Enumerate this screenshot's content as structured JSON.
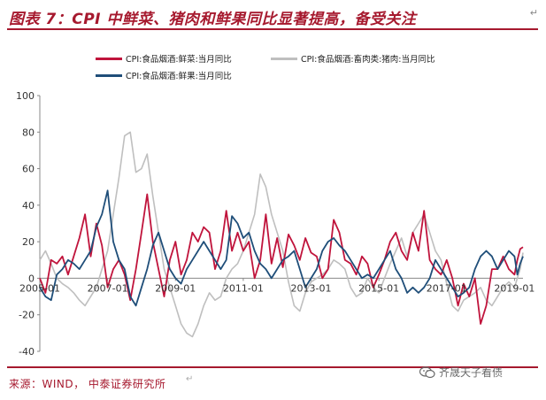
{
  "header": {
    "title": "图表 7：CPI 中鲜菜、猪肉和鲜果同比显著提高，备受关注",
    "return_mark": "↵"
  },
  "footer": {
    "source": "来源：WIND，  中泰证券研究所",
    "watermark": "齐晟天子看债",
    "return_mark": "↵"
  },
  "colors": {
    "accent": "#a6192e",
    "vegetables": "#c0143c",
    "pork": "#bfbfbf",
    "fruit": "#1f4e79"
  },
  "chart_data": {
    "type": "line",
    "title": "",
    "xlabel": "",
    "ylabel": "",
    "ylim": [
      -40,
      100
    ],
    "yticks": [
      -40,
      -20,
      0,
      20,
      40,
      60,
      80,
      100
    ],
    "x_start": "2005-01",
    "x_end": "2019-04",
    "x_tick_labels": [
      "2005-01",
      "2007-01",
      "2009-01",
      "2011-01",
      "2013-01",
      "2015-01",
      "2017-01",
      "2019-01"
    ],
    "grid": false,
    "legend_position": "top",
    "series": [
      {
        "name": "CPI:食品烟酒:鲜菜:当月同比",
        "color": "#c0143c",
        "points": [
          [
            "2005-01",
            0
          ],
          [
            "2005-03",
            -8
          ],
          [
            "2005-05",
            10
          ],
          [
            "2005-07",
            8
          ],
          [
            "2005-09",
            12
          ],
          [
            "2005-11",
            2
          ],
          [
            "2006-01",
            12
          ],
          [
            "2006-03",
            22
          ],
          [
            "2006-05",
            35
          ],
          [
            "2006-07",
            12
          ],
          [
            "2006-09",
            30
          ],
          [
            "2006-11",
            18
          ],
          [
            "2007-01",
            -5
          ],
          [
            "2007-03",
            5
          ],
          [
            "2007-05",
            10
          ],
          [
            "2007-07",
            2
          ],
          [
            "2007-09",
            -12
          ],
          [
            "2007-11",
            5
          ],
          [
            "2008-01",
            25
          ],
          [
            "2008-03",
            46
          ],
          [
            "2008-05",
            20
          ],
          [
            "2008-07",
            5
          ],
          [
            "2008-09",
            -10
          ],
          [
            "2008-11",
            10
          ],
          [
            "2009-01",
            20
          ],
          [
            "2009-03",
            2
          ],
          [
            "2009-05",
            10
          ],
          [
            "2009-07",
            25
          ],
          [
            "2009-09",
            20
          ],
          [
            "2009-11",
            28
          ],
          [
            "2010-01",
            25
          ],
          [
            "2010-03",
            5
          ],
          [
            "2010-05",
            15
          ],
          [
            "2010-07",
            37
          ],
          [
            "2010-09",
            15
          ],
          [
            "2010-11",
            25
          ],
          [
            "2011-01",
            15
          ],
          [
            "2011-03",
            20
          ],
          [
            "2011-05",
            0
          ],
          [
            "2011-07",
            10
          ],
          [
            "2011-09",
            35
          ],
          [
            "2011-11",
            8
          ],
          [
            "2012-01",
            22
          ],
          [
            "2012-03",
            6
          ],
          [
            "2012-05",
            24
          ],
          [
            "2012-07",
            18
          ],
          [
            "2012-09",
            10
          ],
          [
            "2012-11",
            22
          ],
          [
            "2013-01",
            14
          ],
          [
            "2013-03",
            12
          ],
          [
            "2013-05",
            0
          ],
          [
            "2013-07",
            5
          ],
          [
            "2013-09",
            32
          ],
          [
            "2013-11",
            25
          ],
          [
            "2014-01",
            10
          ],
          [
            "2014-03",
            8
          ],
          [
            "2014-05",
            2
          ],
          [
            "2014-07",
            12
          ],
          [
            "2014-09",
            8
          ],
          [
            "2014-11",
            -5
          ],
          [
            "2015-01",
            2
          ],
          [
            "2015-03",
            10
          ],
          [
            "2015-05",
            20
          ],
          [
            "2015-07",
            25
          ],
          [
            "2015-09",
            15
          ],
          [
            "2015-11",
            10
          ],
          [
            "2016-01",
            25
          ],
          [
            "2016-03",
            15
          ],
          [
            "2016-05",
            37
          ],
          [
            "2016-07",
            10
          ],
          [
            "2016-09",
            5
          ],
          [
            "2016-11",
            2
          ],
          [
            "2017-01",
            10
          ],
          [
            "2017-03",
            0
          ],
          [
            "2017-05",
            -15
          ],
          [
            "2017-07",
            -3
          ],
          [
            "2017-09",
            -10
          ],
          [
            "2017-11",
            0
          ],
          [
            "2018-01",
            -25
          ],
          [
            "2018-03",
            -15
          ],
          [
            "2018-05",
            5
          ],
          [
            "2018-07",
            5
          ],
          [
            "2018-09",
            12
          ],
          [
            "2018-11",
            5
          ],
          [
            "2019-01",
            2
          ],
          [
            "2019-02",
            10
          ],
          [
            "2019-03",
            16
          ],
          [
            "2019-04",
            17
          ]
        ]
      },
      {
        "name": "CPI:食品烟酒:畜肉类:猪肉:当月同比",
        "color": "#bfbfbf",
        "points": [
          [
            "2005-01",
            10
          ],
          [
            "2005-03",
            15
          ],
          [
            "2005-05",
            8
          ],
          [
            "2005-07",
            0
          ],
          [
            "2005-09",
            -3
          ],
          [
            "2005-11",
            -5
          ],
          [
            "2006-01",
            -8
          ],
          [
            "2006-03",
            -12
          ],
          [
            "2006-05",
            -15
          ],
          [
            "2006-07",
            -10
          ],
          [
            "2006-09",
            -5
          ],
          [
            "2006-11",
            5
          ],
          [
            "2007-01",
            15
          ],
          [
            "2007-03",
            35
          ],
          [
            "2007-05",
            55
          ],
          [
            "2007-07",
            78
          ],
          [
            "2007-09",
            80
          ],
          [
            "2007-11",
            58
          ],
          [
            "2008-01",
            60
          ],
          [
            "2008-03",
            68
          ],
          [
            "2008-05",
            45
          ],
          [
            "2008-07",
            25
          ],
          [
            "2008-09",
            5
          ],
          [
            "2008-11",
            -5
          ],
          [
            "2009-01",
            -15
          ],
          [
            "2009-03",
            -25
          ],
          [
            "2009-05",
            -30
          ],
          [
            "2009-07",
            -32
          ],
          [
            "2009-09",
            -25
          ],
          [
            "2009-11",
            -15
          ],
          [
            "2010-01",
            -8
          ],
          [
            "2010-03",
            -12
          ],
          [
            "2010-05",
            -10
          ],
          [
            "2010-07",
            0
          ],
          [
            "2010-09",
            5
          ],
          [
            "2010-11",
            8
          ],
          [
            "2011-01",
            15
          ],
          [
            "2011-03",
            25
          ],
          [
            "2011-05",
            35
          ],
          [
            "2011-07",
            57
          ],
          [
            "2011-09",
            50
          ],
          [
            "2011-11",
            35
          ],
          [
            "2012-01",
            25
          ],
          [
            "2012-03",
            15
          ],
          [
            "2012-05",
            -2
          ],
          [
            "2012-07",
            -15
          ],
          [
            "2012-09",
            -18
          ],
          [
            "2012-11",
            -8
          ],
          [
            "2013-01",
            -2
          ],
          [
            "2013-03",
            0
          ],
          [
            "2013-05",
            2
          ],
          [
            "2013-07",
            5
          ],
          [
            "2013-09",
            10
          ],
          [
            "2013-11",
            8
          ],
          [
            "2014-01",
            5
          ],
          [
            "2014-03",
            -5
          ],
          [
            "2014-05",
            -10
          ],
          [
            "2014-07",
            -8
          ],
          [
            "2014-09",
            0
          ],
          [
            "2014-11",
            -5
          ],
          [
            "2015-01",
            -8
          ],
          [
            "2015-03",
            0
          ],
          [
            "2015-05",
            8
          ],
          [
            "2015-07",
            15
          ],
          [
            "2015-09",
            22
          ],
          [
            "2015-11",
            12
          ],
          [
            "2016-01",
            25
          ],
          [
            "2016-03",
            30
          ],
          [
            "2016-05",
            35
          ],
          [
            "2016-07",
            25
          ],
          [
            "2016-09",
            15
          ],
          [
            "2016-11",
            10
          ],
          [
            "2017-01",
            -3
          ],
          [
            "2017-03",
            -15
          ],
          [
            "2017-05",
            -18
          ],
          [
            "2017-07",
            -12
          ],
          [
            "2017-09",
            -10
          ],
          [
            "2017-11",
            -8
          ],
          [
            "2018-01",
            -5
          ],
          [
            "2018-03",
            -12
          ],
          [
            "2018-05",
            -15
          ],
          [
            "2018-07",
            -10
          ],
          [
            "2018-09",
            -5
          ],
          [
            "2018-11",
            -2
          ],
          [
            "2019-01",
            -5
          ],
          [
            "2019-02",
            0
          ],
          [
            "2019-03",
            5
          ],
          [
            "2019-04",
            14
          ]
        ]
      },
      {
        "name": "CPI:食品烟酒:鲜果:当月同比",
        "color": "#1f4e79",
        "points": [
          [
            "2005-01",
            -5
          ],
          [
            "2005-03",
            -10
          ],
          [
            "2005-05",
            -12
          ],
          [
            "2005-07",
            2
          ],
          [
            "2005-09",
            5
          ],
          [
            "2005-11",
            10
          ],
          [
            "2006-01",
            8
          ],
          [
            "2006-03",
            5
          ],
          [
            "2006-05",
            10
          ],
          [
            "2006-07",
            15
          ],
          [
            "2006-09",
            28
          ],
          [
            "2006-11",
            35
          ],
          [
            "2007-01",
            48
          ],
          [
            "2007-03",
            20
          ],
          [
            "2007-05",
            10
          ],
          [
            "2007-07",
            5
          ],
          [
            "2007-09",
            -10
          ],
          [
            "2007-11",
            -15
          ],
          [
            "2008-01",
            -5
          ],
          [
            "2008-03",
            5
          ],
          [
            "2008-05",
            18
          ],
          [
            "2008-07",
            25
          ],
          [
            "2008-09",
            15
          ],
          [
            "2008-11",
            5
          ],
          [
            "2009-01",
            0
          ],
          [
            "2009-03",
            -3
          ],
          [
            "2009-05",
            5
          ],
          [
            "2009-07",
            10
          ],
          [
            "2009-09",
            15
          ],
          [
            "2009-11",
            20
          ],
          [
            "2010-01",
            15
          ],
          [
            "2010-03",
            10
          ],
          [
            "2010-05",
            5
          ],
          [
            "2010-07",
            10
          ],
          [
            "2010-09",
            34
          ],
          [
            "2010-11",
            30
          ],
          [
            "2011-01",
            22
          ],
          [
            "2011-03",
            25
          ],
          [
            "2011-05",
            15
          ],
          [
            "2011-07",
            8
          ],
          [
            "2011-09",
            5
          ],
          [
            "2011-11",
            0
          ],
          [
            "2012-01",
            5
          ],
          [
            "2012-03",
            10
          ],
          [
            "2012-05",
            12
          ],
          [
            "2012-07",
            15
          ],
          [
            "2012-09",
            5
          ],
          [
            "2012-11",
            -5
          ],
          [
            "2013-01",
            0
          ],
          [
            "2013-03",
            5
          ],
          [
            "2013-05",
            15
          ],
          [
            "2013-07",
            20
          ],
          [
            "2013-09",
            22
          ],
          [
            "2013-11",
            18
          ],
          [
            "2014-01",
            15
          ],
          [
            "2014-03",
            10
          ],
          [
            "2014-05",
            5
          ],
          [
            "2014-07",
            0
          ],
          [
            "2014-09",
            2
          ],
          [
            "2014-11",
            0
          ],
          [
            "2015-01",
            5
          ],
          [
            "2015-03",
            10
          ],
          [
            "2015-05",
            15
          ],
          [
            "2015-07",
            5
          ],
          [
            "2015-09",
            0
          ],
          [
            "2015-11",
            -8
          ],
          [
            "2016-01",
            -5
          ],
          [
            "2016-03",
            -8
          ],
          [
            "2016-05",
            -5
          ],
          [
            "2016-07",
            0
          ],
          [
            "2016-09",
            10
          ],
          [
            "2016-11",
            5
          ],
          [
            "2017-01",
            0
          ],
          [
            "2017-03",
            -5
          ],
          [
            "2017-05",
            -10
          ],
          [
            "2017-07",
            -8
          ],
          [
            "2017-09",
            -5
          ],
          [
            "2017-11",
            5
          ],
          [
            "2018-01",
            12
          ],
          [
            "2018-03",
            15
          ],
          [
            "2018-05",
            12
          ],
          [
            "2018-07",
            5
          ],
          [
            "2018-09",
            10
          ],
          [
            "2018-11",
            15
          ],
          [
            "2019-01",
            12
          ],
          [
            "2019-02",
            2
          ],
          [
            "2019-03",
            8
          ],
          [
            "2019-04",
            12
          ]
        ]
      }
    ]
  }
}
